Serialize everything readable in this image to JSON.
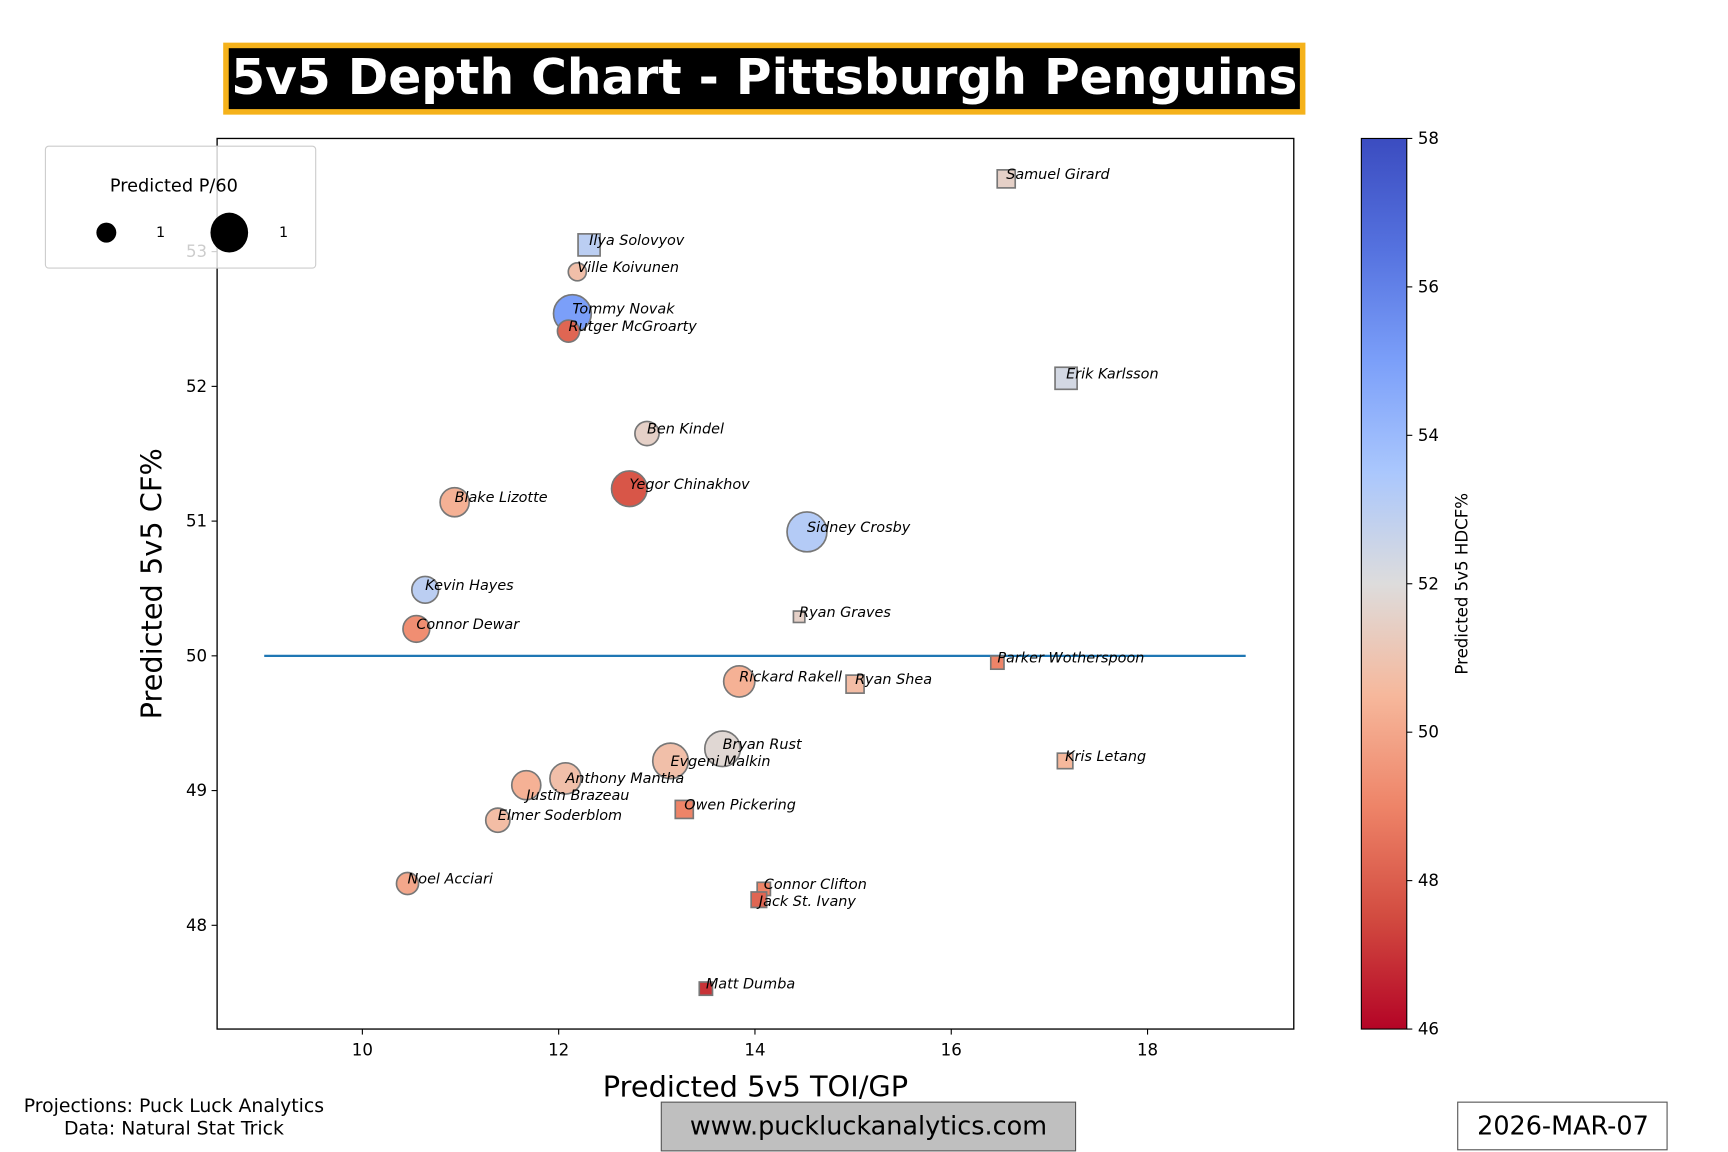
{
  "title": "5v5 Depth Chart - Pittsburgh Penguins",
  "colors": {
    "title_bg": "#000000",
    "title_border": "#f5b21b",
    "title_text": "#ffffff",
    "reference_line": "#1f77b4",
    "website_box": "#bfbfbf"
  },
  "footer": {
    "projections": "Projections: Puck Luck Analytics",
    "data_source": "Data: Natural Stat Trick",
    "website": "www.puckluckanalytics.com",
    "date": "2026-MAR-07"
  },
  "chart_data": {
    "type": "scatter",
    "title": "5v5 Depth Chart - Pittsburgh Penguins",
    "xlabel": "Predicted 5v5 TOI/GP",
    "ylabel": "Predicted 5v5 CF%",
    "xlim": [
      8.52,
      19.49
    ],
    "ylim": [
      47.23,
      53.84
    ],
    "xticks": [
      10,
      12,
      14,
      16,
      18
    ],
    "yticks": [
      48,
      49,
      50,
      51,
      52,
      53
    ],
    "grid": false,
    "reference_line": {
      "y": 50,
      "x_from": 9,
      "x_to": 19
    },
    "colorbar": {
      "label": "Predicted 5v5 HDCF%",
      "range": [
        46,
        58
      ],
      "ticks": [
        46,
        48,
        50,
        52,
        54,
        56,
        58
      ],
      "colormap": "coolwarm_r"
    },
    "size_legend": {
      "title": "Predicted P/60",
      "entries": [
        {
          "label": "1",
          "size": "small"
        },
        {
          "label": "1",
          "size": "large"
        }
      ],
      "placement": "top-left"
    },
    "points": [
      {
        "name": "Samuel Girard",
        "x": 16.56,
        "y": 53.54,
        "hdcf": 51.5,
        "p60": 0.5,
        "shape": "square"
      },
      {
        "name": "Ilya Solovyov",
        "x": 12.31,
        "y": 53.05,
        "hdcf": 53.0,
        "p60": 0.75,
        "shape": "square"
      },
      {
        "name": "Ville Koivunen",
        "x": 12.19,
        "y": 52.85,
        "hdcf": 50.8,
        "p60": 0.5,
        "shape": "circle"
      },
      {
        "name": "Tommy Novak",
        "x": 12.14,
        "y": 52.54,
        "hdcf": 55.0,
        "p60": 2.2,
        "shape": "circle"
      },
      {
        "name": "Rutger McGroarty",
        "x": 12.1,
        "y": 52.41,
        "hdcf": 48.2,
        "p60": 0.75,
        "shape": "circle"
      },
      {
        "name": "Erik Karlsson",
        "x": 17.17,
        "y": 52.06,
        "hdcf": 52.3,
        "p60": 0.75,
        "shape": "square"
      },
      {
        "name": "Ben Kindel",
        "x": 12.9,
        "y": 51.65,
        "hdcf": 51.5,
        "p60": 0.9,
        "shape": "circle"
      },
      {
        "name": "Yegor Chinakhov",
        "x": 12.72,
        "y": 51.24,
        "hdcf": 47.8,
        "p60": 1.95,
        "shape": "circle"
      },
      {
        "name": "Blake Lizotte",
        "x": 10.94,
        "y": 51.14,
        "hdcf": 50.3,
        "p60": 1.3,
        "shape": "circle"
      },
      {
        "name": "Sidney Crosby",
        "x": 14.53,
        "y": 50.92,
        "hdcf": 53.2,
        "p60": 2.45,
        "shape": "circle"
      },
      {
        "name": "Kevin Hayes",
        "x": 10.64,
        "y": 50.49,
        "hdcf": 53.0,
        "p60": 1.1,
        "shape": "circle"
      },
      {
        "name": "Ryan Graves",
        "x": 14.45,
        "y": 50.29,
        "hdcf": 51.5,
        "p60": 0.2,
        "shape": "square"
      },
      {
        "name": "Connor Dewar",
        "x": 10.55,
        "y": 50.2,
        "hdcf": 49.3,
        "p60": 1.1,
        "shape": "circle"
      },
      {
        "name": "Parker Wotherspoon",
        "x": 16.47,
        "y": 49.95,
        "hdcf": 49.0,
        "p60": 0.27,
        "shape": "square"
      },
      {
        "name": "Rickard Rakell",
        "x": 13.84,
        "y": 49.81,
        "hdcf": 50.3,
        "p60": 1.5,
        "shape": "circle"
      },
      {
        "name": "Ryan Shea",
        "x": 15.02,
        "y": 49.79,
        "hdcf": 50.7,
        "p60": 0.5,
        "shape": "square"
      },
      {
        "name": "Bryan Rust",
        "x": 13.67,
        "y": 49.31,
        "hdcf": 51.8,
        "p60": 1.95,
        "shape": "circle"
      },
      {
        "name": "Evgeni Malkin",
        "x": 13.14,
        "y": 49.22,
        "hdcf": 50.8,
        "p60": 1.95,
        "shape": "circle"
      },
      {
        "name": "Kris Letang",
        "x": 17.16,
        "y": 49.22,
        "hdcf": 50.5,
        "p60": 0.37,
        "shape": "square"
      },
      {
        "name": "Anthony Mantha",
        "x": 12.07,
        "y": 49.09,
        "hdcf": 50.8,
        "p60": 1.5,
        "shape": "circle"
      },
      {
        "name": "Justin Brazeau",
        "x": 11.67,
        "y": 49.04,
        "hdcf": 50.3,
        "p60": 1.3,
        "shape": "circle"
      },
      {
        "name": "Owen Pickering",
        "x": 13.28,
        "y": 48.86,
        "hdcf": 49.0,
        "p60": 0.5,
        "shape": "square"
      },
      {
        "name": "Elmer Soderblom",
        "x": 11.38,
        "y": 48.78,
        "hdcf": 50.7,
        "p60": 0.9,
        "shape": "circle"
      },
      {
        "name": "Noel Acciari",
        "x": 10.46,
        "y": 48.31,
        "hdcf": 50.0,
        "p60": 0.75,
        "shape": "circle"
      },
      {
        "name": "Connor Clifton",
        "x": 14.09,
        "y": 48.27,
        "hdcf": 49.0,
        "p60": 0.27,
        "shape": "square"
      },
      {
        "name": "Jack St. Ivany",
        "x": 14.04,
        "y": 48.19,
        "hdcf": 48.2,
        "p60": 0.37,
        "shape": "square"
      },
      {
        "name": "Matt Dumba",
        "x": 13.5,
        "y": 47.53,
        "hdcf": 47.0,
        "p60": 0.27,
        "shape": "square"
      }
    ]
  }
}
